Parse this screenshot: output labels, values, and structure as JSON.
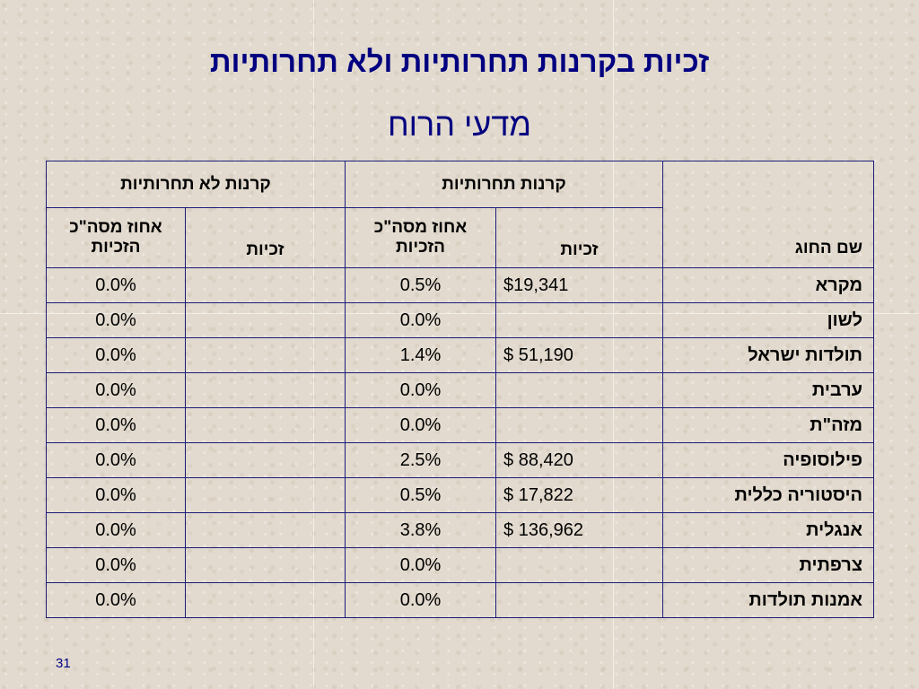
{
  "slide": {
    "title": "זכיות בקרנות תחרותיות ולא תחרותיות",
    "subtitle": "מדעי הרוח",
    "page_number": "31"
  },
  "table": {
    "header": {
      "name_column": "שם החוג",
      "competitive_group": "קרנות תחרותיות",
      "non_competitive_group": "קרנות לא תחרותיות",
      "rights": "זכיות",
      "percent_line1": "אחוז מסה\"כ",
      "percent_line2": "הזכיות"
    },
    "rows": [
      {
        "name": "מקרא",
        "comp_rights": "$19,341",
        "comp_pct": "0.5%",
        "noncomp_rights": "",
        "noncomp_pct": "0.0%"
      },
      {
        "name": "לשון",
        "comp_rights": "",
        "comp_pct": "0.0%",
        "noncomp_rights": "",
        "noncomp_pct": "0.0%"
      },
      {
        "name": "תולדות ישראל",
        "comp_rights": "$ 51,190",
        "comp_pct": "1.4%",
        "noncomp_rights": "",
        "noncomp_pct": "0.0%"
      },
      {
        "name": "ערבית",
        "comp_rights": "",
        "comp_pct": "0.0%",
        "noncomp_rights": "",
        "noncomp_pct": "0.0%"
      },
      {
        "name": "מזה\"ת",
        "comp_rights": "",
        "comp_pct": "0.0%",
        "noncomp_rights": "",
        "noncomp_pct": "0.0%"
      },
      {
        "name": "פילוסופיה",
        "comp_rights": "$ 88,420",
        "comp_pct": "2.5%",
        "noncomp_rights": "",
        "noncomp_pct": "0.0%"
      },
      {
        "name": "היסטוריה כללית",
        "comp_rights": "$ 17,822",
        "comp_pct": "0.5%",
        "noncomp_rights": "",
        "noncomp_pct": "0.0%"
      },
      {
        "name": "אנגלית",
        "comp_rights": "$ 136,962",
        "comp_pct": "3.8%",
        "noncomp_rights": "",
        "noncomp_pct": "0.0%"
      },
      {
        "name": "צרפתית",
        "comp_rights": "",
        "comp_pct": "0.0%",
        "noncomp_rights": "",
        "noncomp_pct": "0.0%"
      },
      {
        "name": "אמנות תולדות",
        "comp_rights": "",
        "comp_pct": "0.0%",
        "noncomp_rights": "",
        "noncomp_pct": "0.0%"
      }
    ]
  },
  "colors": {
    "title": "#000080",
    "table_border": "#1c1c7a",
    "background": "#e2dace"
  }
}
